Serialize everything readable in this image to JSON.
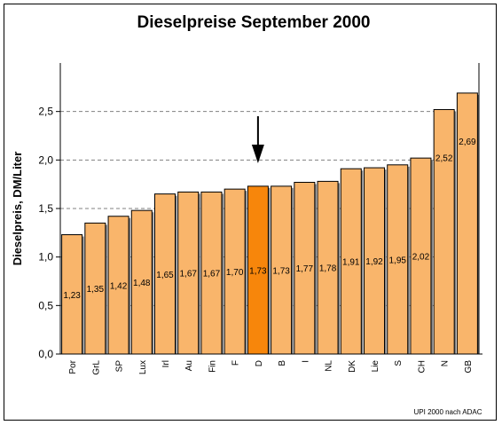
{
  "chart_data": {
    "type": "bar",
    "title": "Dieselpreise September 2000",
    "ylabel": "Dieselpreis, DM/Liter",
    "xlabel": "",
    "ylim": [
      0,
      3.0
    ],
    "yticks": [
      "0,0",
      "0,5",
      "1,0",
      "1,5",
      "2,0",
      "2,5"
    ],
    "ytick_values": [
      0,
      0.5,
      1.0,
      1.5,
      2.0,
      2.5
    ],
    "grid": "horizontal dashed",
    "categories": [
      "Por",
      "GrL",
      "SP",
      "Lux",
      "Irl",
      "Au",
      "Fin",
      "F",
      "D",
      "B",
      "I",
      "NL",
      "DK",
      "Lie",
      "S",
      "CH",
      "N",
      "GB"
    ],
    "values": [
      1.23,
      1.35,
      1.42,
      1.48,
      1.65,
      1.67,
      1.67,
      1.7,
      1.73,
      1.73,
      1.77,
      1.78,
      1.91,
      1.92,
      1.95,
      2.02,
      2.52,
      2.69
    ],
    "value_labels": [
      "1,23",
      "1,35",
      "1,42",
      "1,48",
      "1,65",
      "1,67",
      "1,67",
      "1,70",
      "1,73",
      "1,73",
      "1,77",
      "1,78",
      "1,91",
      "1,92",
      "1,95",
      "2,02",
      "2,52",
      "2,69"
    ],
    "highlight_category": "D",
    "annotation": "arrow pointing down at D",
    "colors": {
      "bar": "#f9b56b",
      "highlight": "#f7860b",
      "bar_edge": "#000000",
      "grid": "#808080"
    }
  },
  "source_note": "UPI 2000 nach ADAC"
}
